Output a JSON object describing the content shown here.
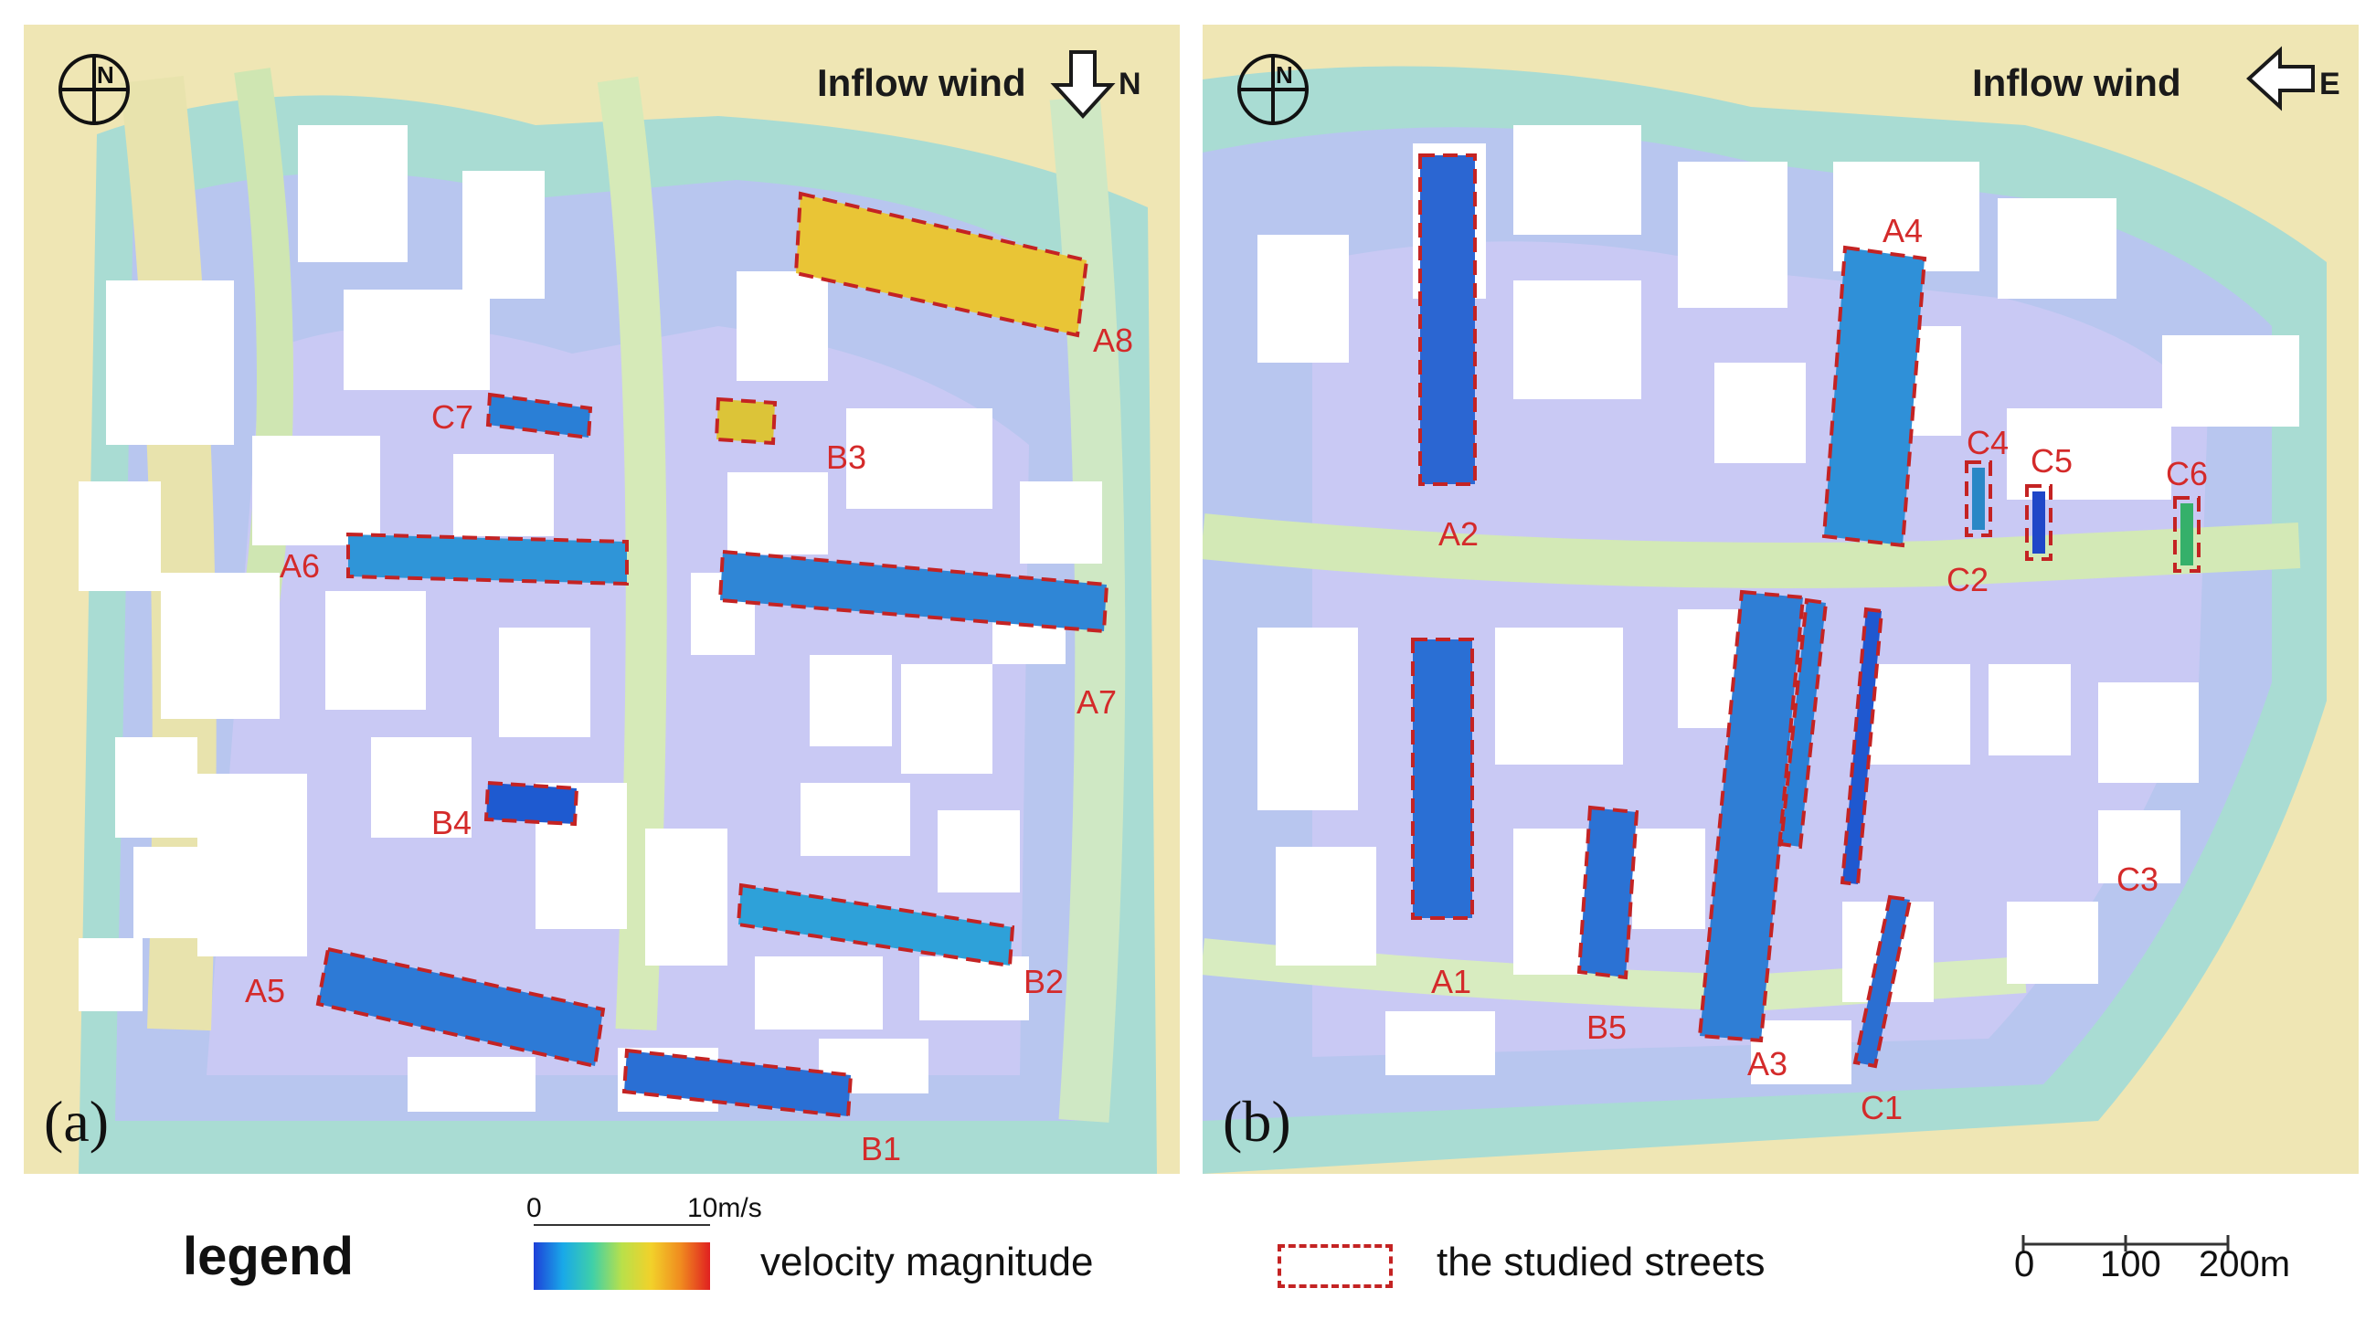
{
  "panels": [
    {
      "id": "a",
      "label": "(a)",
      "inflow_text": "Inflow wind",
      "direction": "N",
      "streets": [
        "A5",
        "A6",
        "A7",
        "A8",
        "B1",
        "B2",
        "B3",
        "B4",
        "C7"
      ]
    },
    {
      "id": "b",
      "label": "(b)",
      "inflow_text": "Inflow wind",
      "direction": "E",
      "streets": [
        "A1",
        "A2",
        "A3",
        "A4",
        "B5",
        "C1",
        "C2",
        "C3",
        "C4",
        "C5",
        "C6"
      ]
    }
  ],
  "legend": {
    "title": "legend",
    "colorbar_min": "0",
    "colorbar_max": "10m/s",
    "colorbar_label": "velocity magnitude",
    "box_label": "the studied streets",
    "scale_ticks": [
      "0",
      "100",
      "200m"
    ]
  },
  "colors": {
    "street_box": "#c42323",
    "label": "#d42a2a",
    "low_velocity": "#1e3fd8",
    "high_velocity": "#e02020",
    "background_field": "#efe6b4"
  }
}
